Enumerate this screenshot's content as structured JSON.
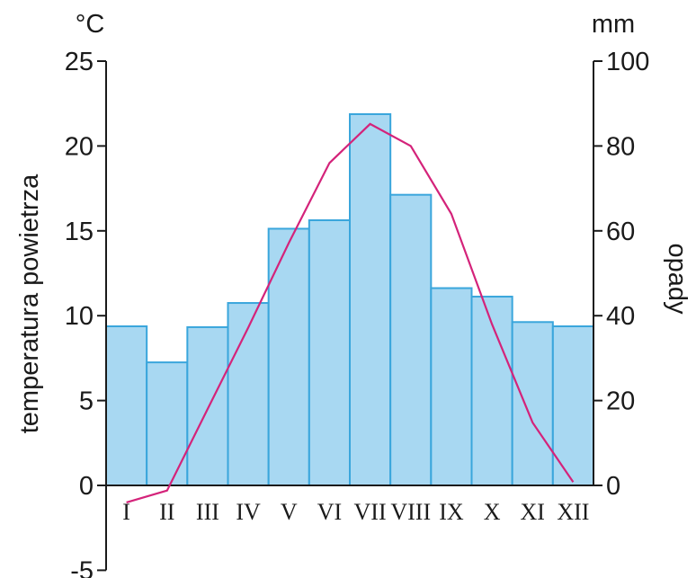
{
  "chart_data": {
    "type": "bar",
    "categories": [
      "I",
      "II",
      "III",
      "IV",
      "V",
      "VI",
      "VII",
      "VIII",
      "IX",
      "X",
      "XI",
      "XII"
    ],
    "series": [
      {
        "type": "bar",
        "axis": "right",
        "values": [
          37.5,
          29,
          37.3,
          43,
          60.5,
          62.5,
          87.5,
          68.5,
          46.5,
          44.5,
          38.5,
          37.5
        ]
      },
      {
        "type": "line",
        "axis": "left",
        "values": [
          -1,
          -0.3,
          4.5,
          9.3,
          14.3,
          19,
          21.3,
          20,
          16,
          9.5,
          3.7,
          0.2
        ]
      }
    ],
    "ylabel": "temperatura powietrza",
    "y2label": "opady",
    "yunit": "°C",
    "y2unit": "mm",
    "ylim": [
      -5,
      25
    ],
    "y2lim": [
      0,
      100
    ],
    "yticks": [
      "-5",
      "0",
      "5",
      "10",
      "15",
      "20",
      "25"
    ],
    "y2ticks": [
      "0",
      "20",
      "40",
      "60",
      "80",
      "100"
    ],
    "grid": false,
    "colors": {
      "bar_fill": "#a8d8f2",
      "bar_stroke": "#3aa6dc",
      "line": "#d4237a",
      "axis": "#1a1a1a"
    }
  }
}
